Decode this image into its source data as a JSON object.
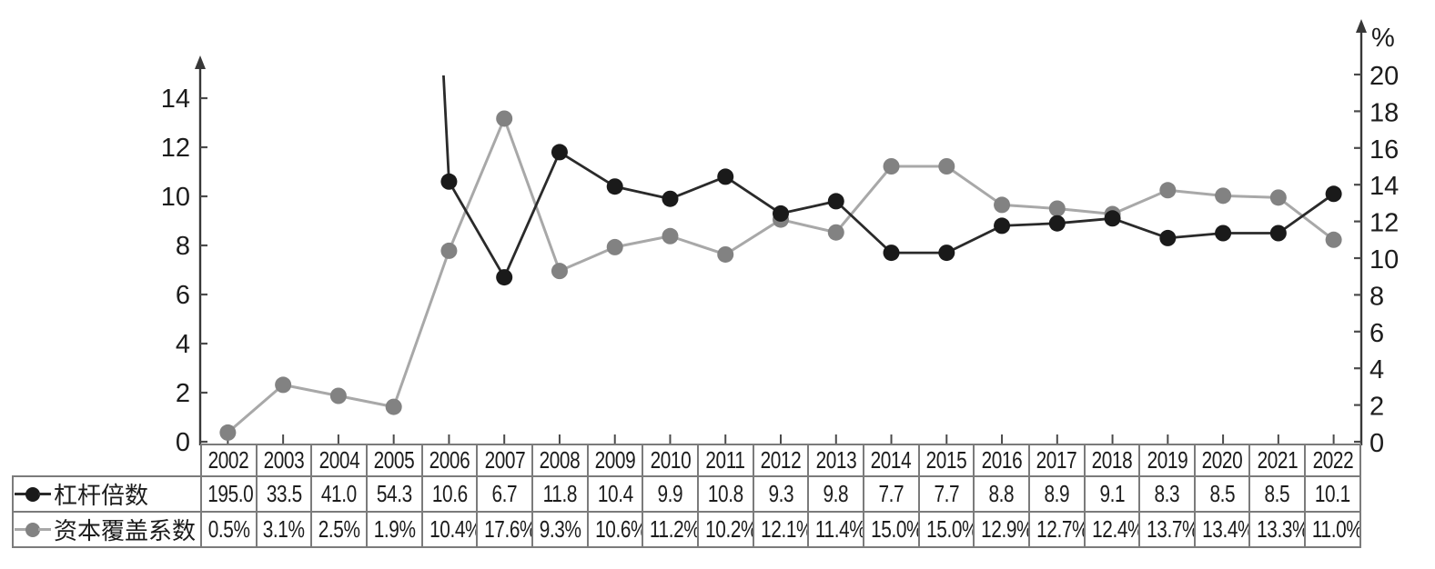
{
  "chart_data": {
    "type": "line",
    "title": "",
    "categories": [
      "2002",
      "2003",
      "2004",
      "2005",
      "2006",
      "2007",
      "2008",
      "2009",
      "2010",
      "2011",
      "2012",
      "2013",
      "2014",
      "2015",
      "2016",
      "2017",
      "2018",
      "2019",
      "2020",
      "2021",
      "2022"
    ],
    "series": [
      {
        "name": "杠杆倍数",
        "axis": "left",
        "line_color": "#2a2a2a",
        "marker_color": "#1a1a1a",
        "values": [
          195.0,
          33.5,
          41.0,
          54.3,
          10.6,
          6.7,
          11.8,
          10.4,
          9.9,
          10.8,
          9.3,
          9.8,
          7.7,
          7.7,
          8.8,
          8.9,
          9.1,
          8.3,
          8.5,
          8.5,
          10.1
        ],
        "table_labels": [
          "195.0",
          "33.5",
          "41.0",
          "54.3",
          "10.6",
          "6.7",
          "11.8",
          "10.4",
          "9.9",
          "10.8",
          "9.3",
          "9.8",
          "7.7",
          "7.7",
          "8.8",
          "8.9",
          "9.1",
          "8.3",
          "8.5",
          "8.5",
          "10.1"
        ]
      },
      {
        "name": "资本覆盖系数",
        "axis": "right",
        "line_color": "#a8a8a8",
        "marker_color": "#828282",
        "values": [
          0.5,
          3.1,
          2.5,
          1.9,
          10.4,
          17.6,
          9.3,
          10.6,
          11.2,
          10.2,
          12.1,
          11.4,
          15.0,
          15.0,
          12.9,
          12.7,
          12.4,
          13.7,
          13.4,
          13.3,
          11.0
        ],
        "table_labels": [
          "0.5%",
          "3.1%",
          "2.5%",
          "1.9%",
          "10.4%",
          "17.6%",
          "9.3%",
          "10.6%",
          "11.2%",
          "10.2%",
          "12.1%",
          "11.4%",
          "15.0%",
          "15.0%",
          "12.9%",
          "12.7%",
          "12.4%",
          "13.7%",
          "13.4%",
          "13.3%",
          "11.0%"
        ]
      }
    ],
    "left_axis": {
      "label": "",
      "min": 0,
      "max": 14,
      "tick_step": 2,
      "ticks": [
        0,
        2,
        4,
        6,
        8,
        10,
        12,
        14
      ],
      "clip_top_value": 15
    },
    "right_axis": {
      "label": "%",
      "min": 0,
      "max": 20,
      "tick_step": 2,
      "ticks": [
        0,
        2,
        4,
        6,
        8,
        10,
        12,
        14,
        16,
        18,
        20
      ]
    },
    "grid": false,
    "legend_position": "table-left-column"
  },
  "colors": {
    "axis": "#383838",
    "tick": "#4a4a4a",
    "table_border": "#7b7b7b",
    "text": "#1c1c1c",
    "background": "#ffffff"
  }
}
